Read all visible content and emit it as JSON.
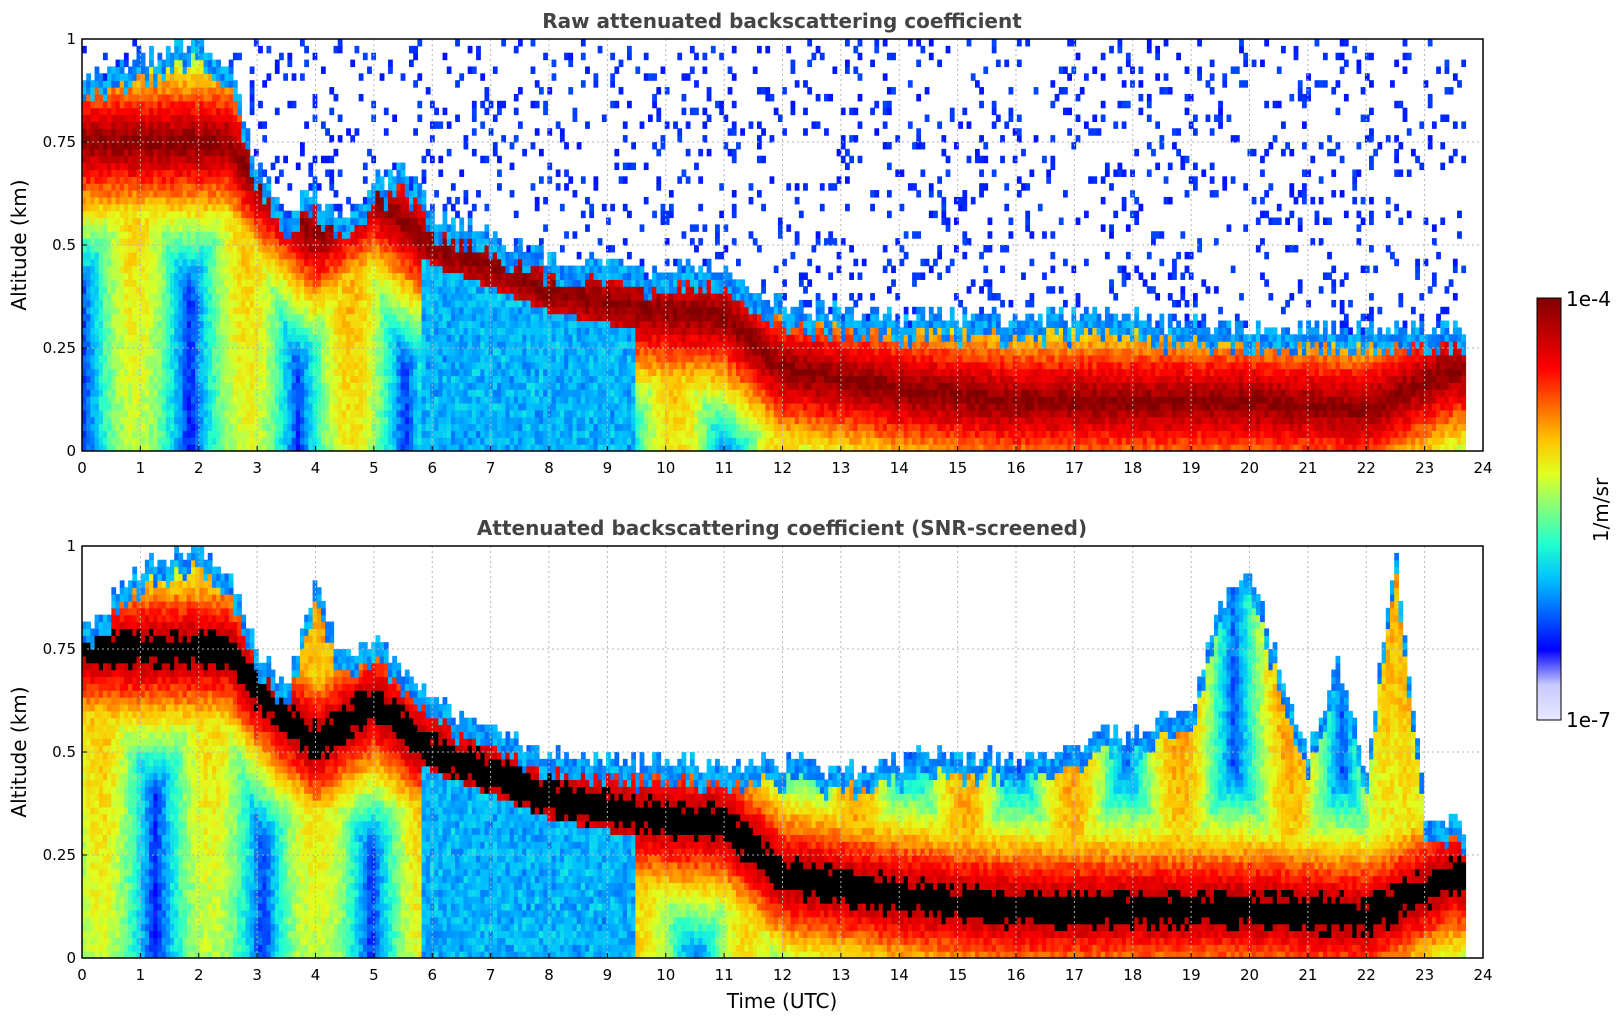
{
  "chart_data": [
    {
      "type": "heatmap",
      "title": "Raw attenuated backscattering coefficient",
      "xlabel": "",
      "ylabel": "Altitude (km)",
      "xlim": [
        0,
        24
      ],
      "ylim": [
        0,
        1
      ],
      "xticks": [
        "0",
        "1",
        "2",
        "3",
        "4",
        "5",
        "6",
        "7",
        "8",
        "9",
        "10",
        "11",
        "12",
        "13",
        "14",
        "15",
        "16",
        "17",
        "18",
        "19",
        "20",
        "21",
        "22",
        "23",
        "24"
      ],
      "yticks": [
        "0",
        "0.25",
        "0.5",
        "0.75",
        "1"
      ],
      "grid": true,
      "data_end_time": 23.7,
      "layer_top_km": [
        [
          0,
          0.9
        ],
        [
          1,
          0.95
        ],
        [
          2,
          1
        ],
        [
          2.5,
          0.95
        ],
        [
          3,
          0.7
        ],
        [
          3.5,
          0.58
        ],
        [
          4,
          0.62
        ],
        [
          4.5,
          0.55
        ],
        [
          5,
          0.65
        ],
        [
          5.5,
          0.68
        ],
        [
          6,
          0.58
        ],
        [
          7,
          0.52
        ],
        [
          8,
          0.47
        ],
        [
          9,
          0.45
        ],
        [
          10,
          0.44
        ],
        [
          11,
          0.45
        ],
        [
          12,
          0.35
        ],
        [
          14,
          0.33
        ],
        [
          16,
          0.33
        ],
        [
          18,
          0.32
        ],
        [
          20,
          0.3
        ],
        [
          21,
          0.3
        ],
        [
          22,
          0.3
        ],
        [
          23,
          0.3
        ],
        [
          23.7,
          0.3
        ]
      ],
      "peak_band_km": [
        [
          2.5,
          0.75
        ],
        [
          3,
          0.65
        ],
        [
          4,
          0.52
        ],
        [
          5,
          0.62
        ],
        [
          6,
          0.5
        ],
        [
          7,
          0.45
        ],
        [
          8,
          0.39
        ],
        [
          9,
          0.36
        ],
        [
          10,
          0.34
        ],
        [
          11,
          0.33
        ],
        [
          12,
          0.2
        ],
        [
          14,
          0.15
        ],
        [
          16,
          0.12
        ],
        [
          18,
          0.12
        ],
        [
          20,
          0.12
        ],
        [
          22,
          0.1
        ],
        [
          23.5,
          0.2
        ]
      ],
      "value_range": [
        1e-07,
        0.0001
      ],
      "units": "1/m/sr",
      "screening": "raw"
    },
    {
      "type": "heatmap",
      "title": "Attenuated backscattering coefficient (SNR-screened)",
      "xlabel": "Time (UTC)",
      "ylabel": "Altitude (km)",
      "xlim": [
        0,
        24
      ],
      "ylim": [
        0,
        1
      ],
      "xticks": [
        "0",
        "1",
        "2",
        "3",
        "4",
        "5",
        "6",
        "7",
        "8",
        "9",
        "10",
        "11",
        "12",
        "13",
        "14",
        "15",
        "16",
        "17",
        "18",
        "19",
        "20",
        "21",
        "22",
        "23",
        "24"
      ],
      "yticks": [
        "0",
        "0.25",
        "0.5",
        "0.75",
        "1"
      ],
      "grid": true,
      "data_end_time": 23.7,
      "layer_top_km": [
        [
          0,
          0.78
        ],
        [
          1,
          0.95
        ],
        [
          2,
          1
        ],
        [
          2.5,
          0.95
        ],
        [
          3,
          0.75
        ],
        [
          3.5,
          0.65
        ],
        [
          4,
          0.9
        ],
        [
          4.5,
          0.72
        ],
        [
          5,
          0.78
        ],
        [
          5.5,
          0.7
        ],
        [
          6,
          0.63
        ],
        [
          7,
          0.55
        ],
        [
          8,
          0.5
        ],
        [
          9,
          0.48
        ],
        [
          10,
          0.48
        ],
        [
          11,
          0.47
        ],
        [
          12,
          0.48
        ],
        [
          13,
          0.45
        ],
        [
          14,
          0.48
        ],
        [
          15,
          0.5
        ],
        [
          16,
          0.48
        ],
        [
          17,
          0.52
        ],
        [
          18,
          0.55
        ],
        [
          19,
          0.6
        ],
        [
          19.5,
          0.85
        ],
        [
          20,
          0.95
        ],
        [
          20.5,
          0.7
        ],
        [
          21,
          0.5
        ],
        [
          21.5,
          0.72
        ],
        [
          22,
          0.45
        ],
        [
          22.5,
          1
        ],
        [
          23,
          0.35
        ],
        [
          23.7,
          0.32
        ]
      ],
      "peak_band_km": [
        [
          2.5,
          0.75
        ],
        [
          3,
          0.65
        ],
        [
          4,
          0.52
        ],
        [
          5,
          0.62
        ],
        [
          6,
          0.5
        ],
        [
          7,
          0.45
        ],
        [
          8,
          0.39
        ],
        [
          9,
          0.36
        ],
        [
          10,
          0.34
        ],
        [
          11,
          0.33
        ],
        [
          12,
          0.2
        ],
        [
          14,
          0.15
        ],
        [
          16,
          0.12
        ],
        [
          18,
          0.12
        ],
        [
          20,
          0.12
        ],
        [
          22,
          0.1
        ],
        [
          23.5,
          0.2
        ]
      ],
      "value_range": [
        1e-07,
        0.0001
      ],
      "units": "1/m/sr",
      "screening": "snr"
    }
  ],
  "colorbar": {
    "max_label": "1e-4",
    "min_label": "1e-7",
    "label": "1/m/sr",
    "colors": [
      "#e8e8ff",
      "#c8c8ff",
      "#0000ff",
      "#0060ff",
      "#00c0ff",
      "#20ffd0",
      "#80ff80",
      "#e0ff20",
      "#ffc000",
      "#ff6000",
      "#ff0000",
      "#c00000",
      "#800000"
    ]
  }
}
